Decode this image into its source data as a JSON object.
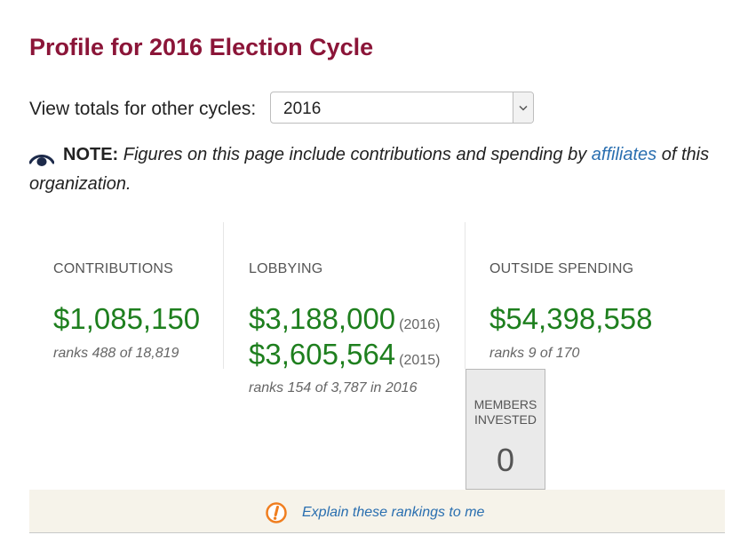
{
  "page": {
    "title": "Profile for 2016 Election Cycle"
  },
  "cycles": {
    "label": "View totals for other cycles:",
    "selected": "2016"
  },
  "note": {
    "label": "NOTE:",
    "text_before": " Figures on this page include contributions and spending by ",
    "link": "affiliates",
    "text_after": " of this organization."
  },
  "stats": {
    "contributions": {
      "label": "CONTRIBUTIONS",
      "amount": "$1,085,150",
      "rank": "ranks 488 of 18,819"
    },
    "lobbying": {
      "label": "LOBBYING",
      "amount_1": "$3,188,000",
      "year_1": "(2016)",
      "amount_2": "$3,605,564",
      "year_2": "(2015)",
      "rank": "ranks 154 of 3,787 in 2016"
    },
    "outside_spending": {
      "label": "OUTSIDE SPENDING",
      "amount": "$54,398,558",
      "rank": "ranks 9 of 170"
    },
    "members_invested": {
      "label_line1": "MEMBERS",
      "label_line2": "INVESTED",
      "value": "0"
    }
  },
  "explain": {
    "link": "Explain these rankings to me"
  },
  "colors": {
    "title": "#8b1538",
    "amount": "#1e7f1e",
    "link": "#2a6fb0",
    "warn": "#f07e1f"
  }
}
